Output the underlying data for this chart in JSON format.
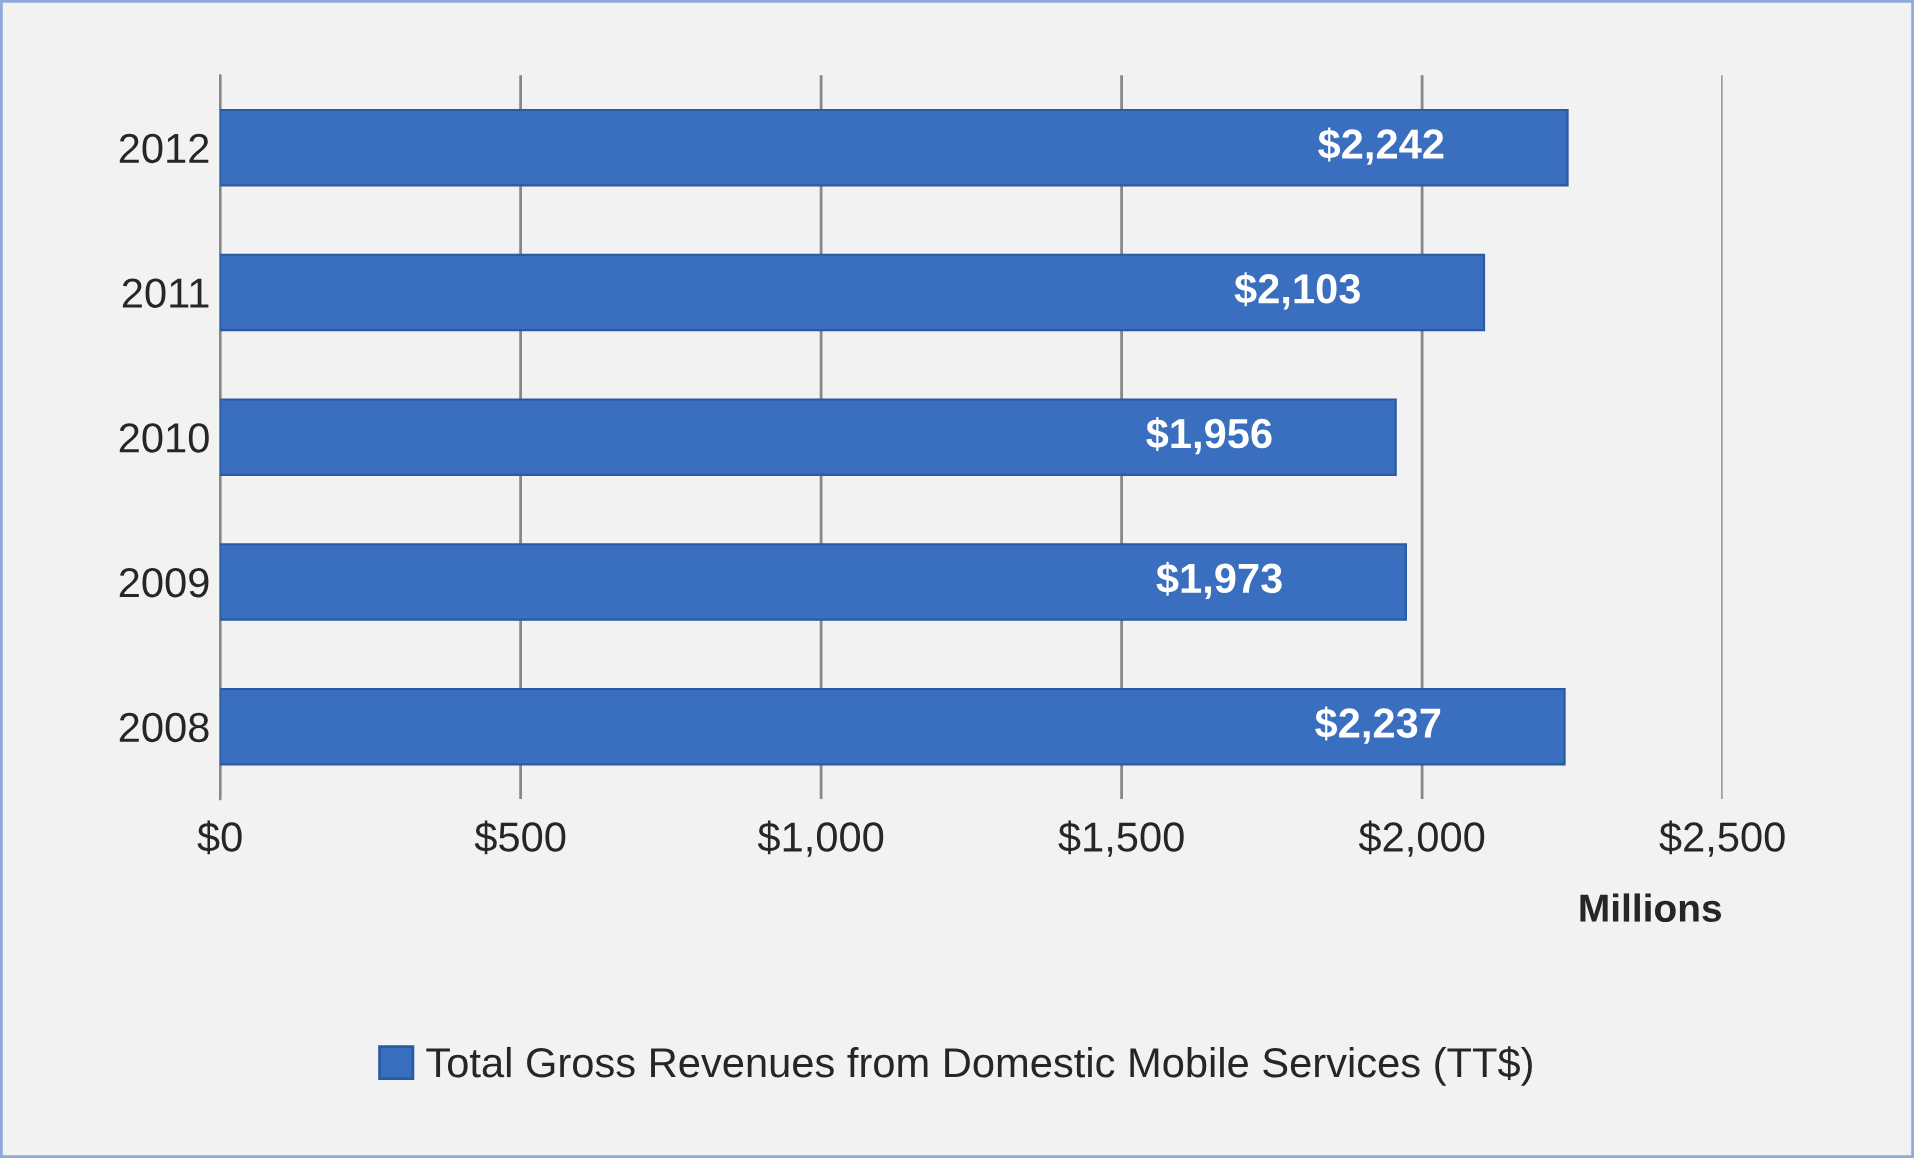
{
  "chart_data": {
    "type": "bar",
    "orientation": "horizontal",
    "categories": [
      "2012",
      "2011",
      "2010",
      "2009",
      "2008"
    ],
    "series": [
      {
        "name": "Total Gross Revenues from Domestic Mobile Services (TT$)",
        "color": "#3a6fc0",
        "values": [
          2242,
          2103,
          1956,
          1973,
          2237
        ],
        "value_labels": [
          "$2,242",
          "$2,103",
          "$1,956",
          "$1,973",
          "$2,237"
        ]
      }
    ],
    "xlim": [
      0,
      2500
    ],
    "xticks": [
      {
        "value": 0,
        "label": "$0"
      },
      {
        "value": 500,
        "label": "$500"
      },
      {
        "value": 1000,
        "label": "$1,000"
      },
      {
        "value": 1500,
        "label": "$1,500"
      },
      {
        "value": 2000,
        "label": "$2,000"
      },
      {
        "value": 2500,
        "label": "$2,500"
      }
    ],
    "xlabel": "Millions",
    "grid": "x",
    "legend": "bottom"
  }
}
